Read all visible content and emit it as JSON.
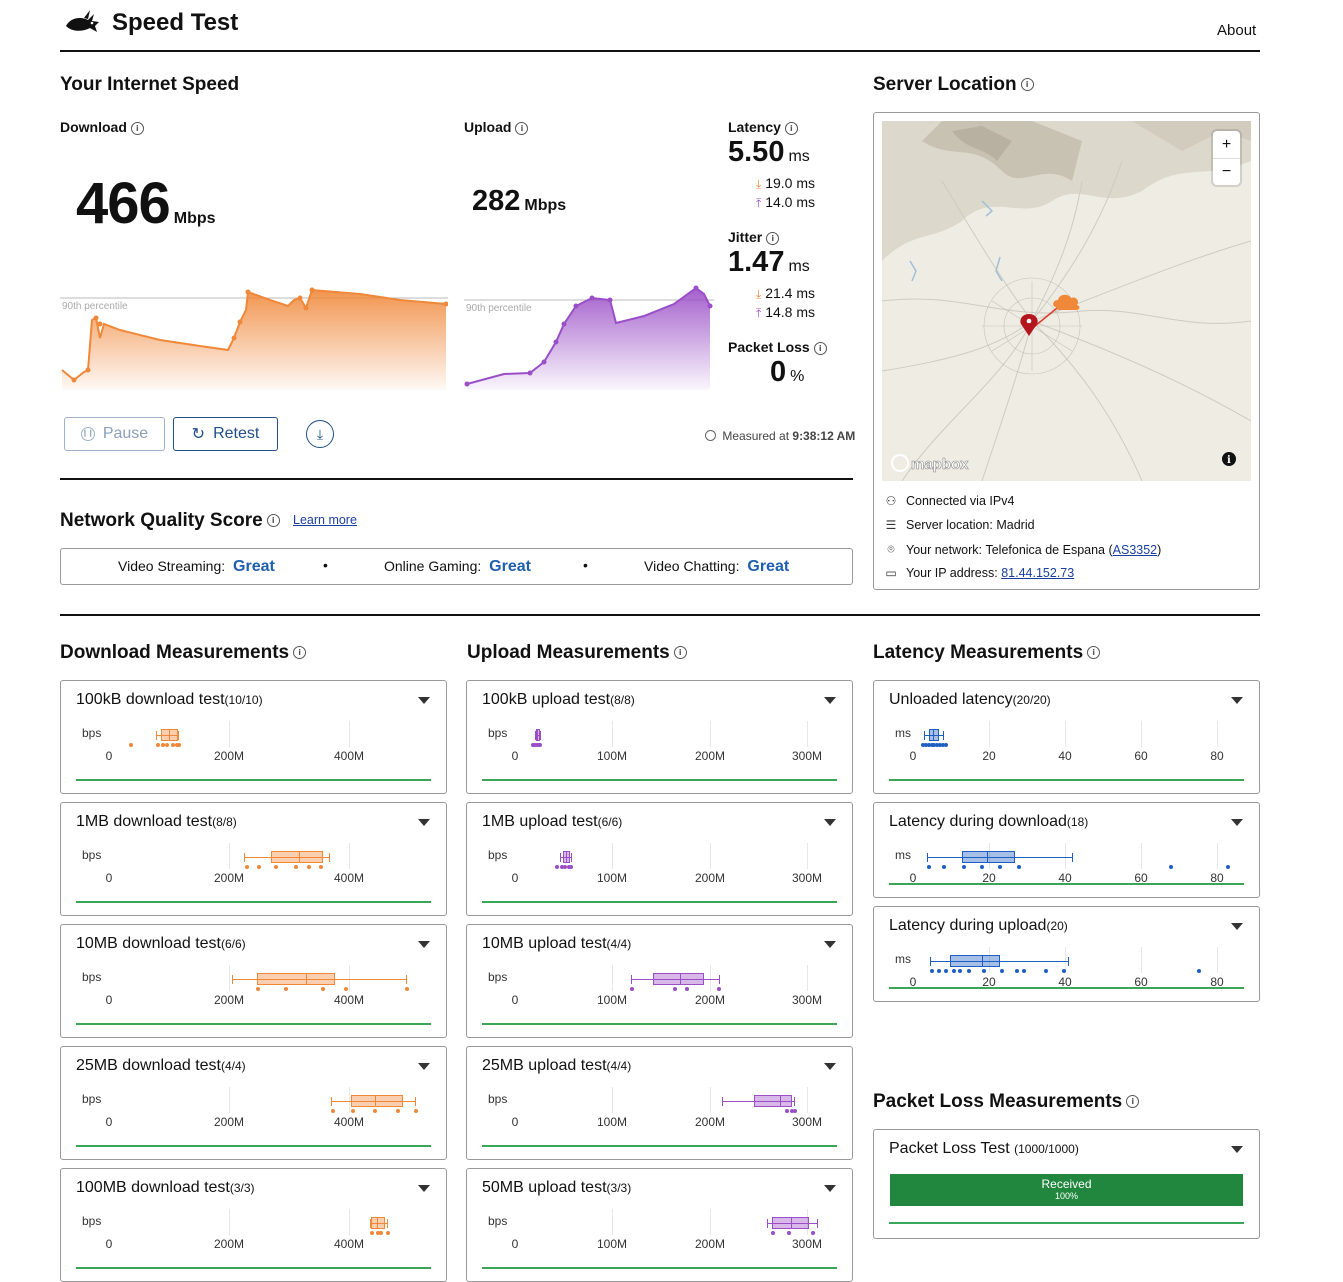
{
  "header": {
    "title": "Speed Test",
    "about": "About"
  },
  "speed": {
    "section_title": "Your Internet Speed",
    "download": {
      "label": "Download",
      "value": "466",
      "unit": "Mbps",
      "percentile": "90th percentile"
    },
    "upload": {
      "label": "Upload",
      "value": "282",
      "unit": "Mbps",
      "percentile": "90th percentile"
    },
    "latency": {
      "label": "Latency",
      "value": "5.50",
      "unit": "ms",
      "down": "19.0 ms",
      "up": "14.0 ms"
    },
    "jitter": {
      "label": "Jitter",
      "value": "1.47",
      "unit": "ms",
      "down": "21.4 ms",
      "up": "14.8 ms"
    },
    "packet_loss": {
      "label": "Packet Loss",
      "value": "0",
      "unit": "%"
    },
    "pause": "Pause",
    "retest": "Retest",
    "measured_prefix": "Measured at",
    "measured_time": "9:38:12 AM"
  },
  "quality": {
    "title": "Network Quality Score",
    "learn_more": "Learn more",
    "items": [
      {
        "label": "Video Streaming:",
        "value": "Great"
      },
      {
        "label": "Online Gaming:",
        "value": "Great"
      },
      {
        "label": "Video Chatting:",
        "value": "Great"
      }
    ]
  },
  "server": {
    "title": "Server Location",
    "zoom_in": "+",
    "zoom_out": "−",
    "mapbox": "mapbox",
    "connected": "Connected via IPv4",
    "location_label": "Server location:",
    "location": "Madrid",
    "network_label": "Your network:",
    "network": "Telefonica de Espana",
    "asn": "AS3352",
    "ip_label": "Your IP address:",
    "ip": "81.44.152.73"
  },
  "download_measurements": {
    "title": "Download Measurements",
    "unit": "bps",
    "ticks": [
      "0",
      "200M",
      "400M"
    ],
    "tests": [
      {
        "name": "100kB download test",
        "count": "(10/10)"
      },
      {
        "name": "1MB download test",
        "count": "(8/8)"
      },
      {
        "name": "10MB download test",
        "count": "(6/6)"
      },
      {
        "name": "25MB download test",
        "count": "(4/4)"
      },
      {
        "name": "100MB download test",
        "count": "(3/3)"
      }
    ]
  },
  "upload_measurements": {
    "title": "Upload Measurements",
    "unit": "bps",
    "ticks": [
      "0",
      "100M",
      "200M",
      "300M"
    ],
    "tests": [
      {
        "name": "100kB upload test",
        "count": "(8/8)"
      },
      {
        "name": "1MB upload test",
        "count": "(6/6)"
      },
      {
        "name": "10MB upload test",
        "count": "(4/4)"
      },
      {
        "name": "25MB upload test",
        "count": "(4/4)"
      },
      {
        "name": "50MB upload test",
        "count": "(3/3)"
      }
    ]
  },
  "latency_measurements": {
    "title": "Latency Measurements",
    "unit": "ms",
    "ticks": [
      "0",
      "20",
      "40",
      "60",
      "80"
    ],
    "tests": [
      {
        "name": "Unloaded latency",
        "count": "(20/20)"
      },
      {
        "name": "Latency during download",
        "count": "(18)"
      },
      {
        "name": "Latency during upload",
        "count": "(20)"
      }
    ]
  },
  "packet_loss_measurements": {
    "title": "Packet Loss Measurements",
    "test": {
      "name": "Packet Loss Test",
      "count": "(1000/1000)"
    },
    "received_label": "Received",
    "received_pct": "100%",
    "received_fraction": 1.0
  },
  "colors": {
    "download": "#f0883a",
    "upload": "#9a4ec7",
    "latency": "#1f5fc4",
    "great": "#1f5fb0",
    "green": "#3aa757"
  }
}
